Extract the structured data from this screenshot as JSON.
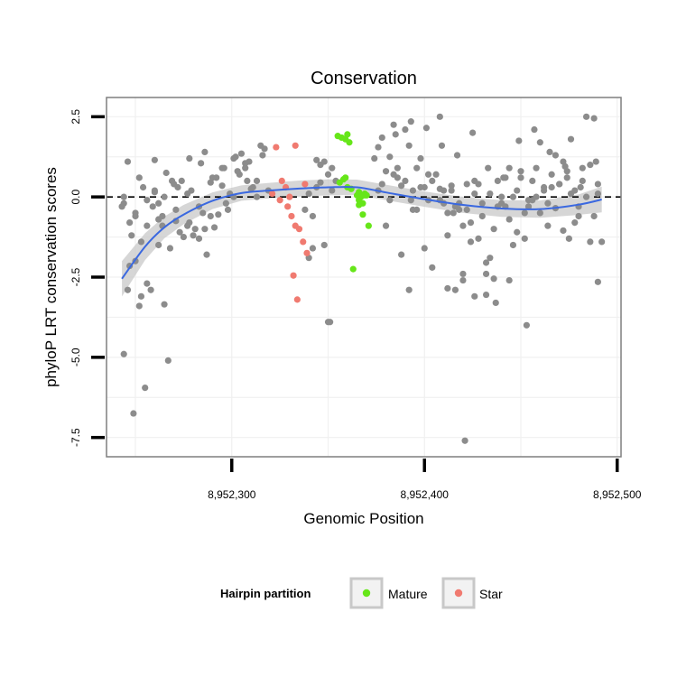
{
  "chart_data": {
    "type": "scatter",
    "title": "Conservation",
    "xlabel": "Genomic Position",
    "ylabel": "phyloP LRT conservation scores",
    "xlim": [
      8952235,
      8952502
    ],
    "ylim": [
      -8.1,
      3.1
    ],
    "x_ticks": [
      8952300,
      8952400,
      8952500
    ],
    "x_tick_labels": [
      "8,952,300",
      "8,952,400",
      "8,952,500"
    ],
    "y_ticks": [
      2.5,
      0,
      -2.5,
      -5,
      -7.5
    ],
    "y_tick_labels": [
      "2.5",
      "0.0",
      "-2.5",
      "-5.0",
      "-7.5"
    ],
    "grid": true,
    "reference_line": {
      "y": 0,
      "style": "dashed"
    },
    "legend": {
      "title": "Hairpin partition",
      "placement": "bottom",
      "entries": [
        {
          "label": "Mature",
          "color": "#66e619"
        },
        {
          "label": "Star",
          "color": "#f07a70"
        }
      ]
    },
    "colors": {
      "other": "#8c8c8c",
      "mature": "#66e619",
      "star": "#f07a70",
      "smooth": "#3a68e0",
      "ribbon": "#c8c8c8"
    },
    "smooth": {
      "x": [
        8952243,
        8952255,
        8952265,
        8952275,
        8952290,
        8952305,
        8952320,
        8952335,
        8952350,
        8952365,
        8952380,
        8952400,
        8952420,
        8952440,
        8952460,
        8952480,
        8952492
      ],
      "y": [
        -2.55,
        -1.55,
        -0.95,
        -0.55,
        -0.12,
        0.12,
        0.2,
        0.26,
        0.3,
        0.3,
        0.14,
        -0.07,
        -0.25,
        -0.36,
        -0.38,
        -0.24,
        -0.08
      ],
      "ci_half_width": [
        0.55,
        0.42,
        0.34,
        0.3,
        0.26,
        0.24,
        0.24,
        0.25,
        0.25,
        0.24,
        0.24,
        0.24,
        0.25,
        0.26,
        0.27,
        0.32,
        0.4
      ]
    },
    "series": [
      {
        "name": "Mature",
        "x": [
          8952355,
          8952357,
          8952359,
          8952360,
          8952361,
          8952363,
          8952356,
          8952358,
          8952359,
          8952360,
          8952365,
          8952366,
          8952367,
          8952368,
          8952369,
          8952370,
          8952368,
          8952371,
          8952366,
          8952362,
          8952369,
          8952366
        ],
        "y": [
          1.9,
          1.85,
          1.8,
          1.95,
          1.7,
          -2.25,
          0.45,
          0.55,
          0.6,
          0.3,
          0.05,
          -0.1,
          0.0,
          -0.2,
          0.1,
          0.05,
          -0.55,
          -0.9,
          0.15,
          0.25,
          0.05,
          -0.25
        ]
      },
      {
        "name": "Star",
        "x": [
          8952323,
          8952333,
          8952326,
          8952321,
          8952328,
          8952330,
          8952325,
          8952329,
          8952331,
          8952333,
          8952335,
          8952337,
          8952339,
          8952332,
          8952334,
          8952338
        ],
        "y": [
          1.55,
          1.6,
          0.5,
          0.1,
          0.3,
          0.0,
          -0.1,
          -0.3,
          -0.6,
          -0.9,
          -1.0,
          -1.4,
          -1.75,
          -2.45,
          -3.2,
          0.4
        ]
      },
      {
        "name": "Other",
        "x": [
          8952243,
          8952244,
          8952246,
          8952247,
          8952249,
          8952250,
          8952252,
          8952253,
          8952255,
          8952256,
          8952258,
          8952260,
          8952262,
          8952264,
          8952265,
          8952267,
          8952269,
          8952271,
          8952273,
          8952275,
          8952277,
          8952279,
          8952281,
          8952283,
          8952285,
          8952287,
          8952289,
          8952291,
          8952293,
          8952295,
          8952297,
          8952299,
          8952301,
          8952303,
          8952305,
          8952307,
          8952309,
          8952311,
          8952313,
          8952315,
          8952317,
          8952319,
          8952244,
          8952247,
          8952250,
          8952253,
          8952256,
          8952259,
          8952262,
          8952265,
          8952268,
          8952271,
          8952274,
          8952277,
          8952280,
          8952283,
          8952286,
          8952289,
          8952292,
          8952295,
          8952298,
          8952301,
          8952304,
          8952307,
          8952310,
          8952313,
          8952316,
          8952244,
          8952248,
          8952252,
          8952256,
          8952260,
          8952264,
          8952246,
          8952250,
          8952254,
          8952262,
          8952270,
          8952278,
          8952286,
          8952260,
          8952266,
          8952272,
          8952278,
          8952284,
          8952290,
          8952296,
          8952302,
          8952308,
          8952340,
          8952342,
          8952344,
          8952346,
          8952348,
          8952350,
          8952352,
          8952354,
          8952340,
          8952344,
          8952348,
          8952352,
          8952350,
          8952338,
          8952342,
          8952346,
          8952374,
          8952376,
          8952378,
          8952380,
          8952382,
          8952384,
          8952386,
          8952388,
          8952390,
          8952392,
          8952394,
          8952396,
          8952398,
          8952400,
          8952402,
          8952404,
          8952406,
          8952408,
          8952410,
          8952412,
          8952414,
          8952416,
          8952418,
          8952420,
          8952422,
          8952424,
          8952426,
          8952428,
          8952430,
          8952432,
          8952434,
          8952436,
          8952438,
          8952440,
          8952442,
          8952444,
          8952446,
          8952448,
          8952450,
          8952452,
          8952454,
          8952456,
          8952458,
          8952460,
          8952462,
          8952464,
          8952466,
          8952468,
          8952470,
          8952472,
          8952474,
          8952476,
          8952478,
          8952480,
          8952482,
          8952484,
          8952486,
          8952488,
          8952490,
          8952492,
          8952376,
          8952380,
          8952384,
          8952388,
          8952392,
          8952396,
          8952400,
          8952404,
          8952408,
          8952412,
          8952416,
          8952420,
          8952424,
          8952428,
          8952432,
          8952436,
          8952440,
          8952444,
          8952448,
          8952452,
          8952456,
          8952460,
          8952464,
          8952468,
          8952472,
          8952476,
          8952480,
          8952484,
          8952488,
          8952385,
          8952393,
          8952401,
          8952409,
          8952417,
          8952425,
          8952433,
          8952441,
          8952449,
          8952457,
          8952465,
          8952473,
          8952481,
          8952489,
          8952378,
          8952386,
          8952394,
          8952402,
          8952410,
          8952418,
          8952426,
          8952434,
          8952442,
          8952450,
          8952458,
          8952466,
          8952474,
          8952482,
          8952490,
          8952382,
          8952390,
          8952398,
          8952414,
          8952422,
          8952430,
          8952438,
          8952446,
          8952454,
          8952462,
          8952470,
          8952478,
          8952486,
          8952393,
          8952408,
          8952412,
          8952415,
          8952421,
          8952420,
          8952426,
          8952432,
          8952437,
          8952444,
          8952453,
          8952475,
          8952490,
          8952351
        ],
        "y": [
          -0.3,
          -4.9,
          -2.9,
          -2.15,
          -6.75,
          -0.6,
          -3.4,
          -3.1,
          -5.95,
          -2.7,
          -2.9,
          0.15,
          -1.5,
          -0.9,
          -3.35,
          -5.1,
          0.5,
          -0.75,
          -1.1,
          -1.25,
          -0.9,
          0.2,
          -1.0,
          -1.3,
          -0.5,
          -1.8,
          0.45,
          -0.95,
          -0.55,
          0.35,
          -0.2,
          0.1,
          1.2,
          0.8,
          1.35,
          0.9,
          1.1,
          0.3,
          0.0,
          1.6,
          1.5,
          0.2,
          -0.2,
          -0.8,
          -2.0,
          -1.4,
          -0.1,
          -0.3,
          -0.7,
          0.0,
          -1.6,
          -0.4,
          0.5,
          0.1,
          -1.2,
          -0.3,
          -1.0,
          -0.6,
          0.6,
          0.9,
          -0.4,
          0.0,
          0.7,
          1.05,
          0.25,
          0.5,
          1.3,
          0.0,
          -1.2,
          0.6,
          -0.9,
          0.2,
          -0.6,
          1.1,
          -0.5,
          0.3,
          -0.2,
          0.4,
          -0.8,
          1.4,
          1.15,
          0.75,
          0.3,
          1.2,
          1.05,
          0.6,
          0.9,
          1.25,
          0.5,
          -1.9,
          -1.6,
          0.3,
          1.0,
          1.1,
          0.7,
          0.9,
          0.5,
          0.1,
          1.15,
          -1.5,
          0.2,
          -3.9,
          -0.4,
          -0.6,
          0.45,
          1.2,
          1.55,
          1.85,
          0.8,
          1.25,
          2.25,
          0.6,
          0.35,
          2.1,
          1.6,
          -0.4,
          0.9,
          1.2,
          0.3,
          -0.1,
          0.5,
          0.7,
          0.25,
          0.2,
          -0.5,
          0.35,
          -2.9,
          -0.2,
          -0.9,
          -0.4,
          -1.4,
          0.1,
          0.4,
          -0.6,
          -2.4,
          -1.9,
          -1.0,
          -0.3,
          0.0,
          0.6,
          -0.7,
          -1.5,
          0.2,
          0.8,
          -0.5,
          -0.1,
          0.5,
          0.9,
          1.7,
          0.3,
          -0.2,
          0.7,
          1.3,
          0.4,
          1.1,
          0.6,
          1.8,
          0.2,
          -0.3,
          0.5,
          0.0,
          1.0,
          -0.6,
          0.4,
          -1.4,
          0.2,
          -0.9,
          0.7,
          -1.8,
          -2.9,
          -0.4,
          -1.6,
          -2.2,
          -0.1,
          -1.2,
          -0.3,
          -2.6,
          -0.8,
          -1.3,
          -3.05,
          -2.55,
          -0.2,
          0.9,
          -1.1,
          -1.3,
          -0.1,
          -0.5,
          -0.9,
          -0.35,
          -1.05,
          0.1,
          -0.6,
          2.5,
          2.45,
          1.95,
          2.35,
          2.15,
          1.6,
          1.3,
          2.0,
          0.9,
          0.6,
          1.75,
          2.1,
          1.4,
          0.95,
          0.3,
          1.1,
          0.4,
          0.9,
          0.2,
          0.7,
          -0.2,
          -0.4,
          0.5,
          0.1,
          -0.3,
          0.6,
          0.0,
          0.3,
          0.8,
          0.9,
          0.1,
          -0.1,
          0.5,
          0.3,
          0.2,
          0.4,
          -0.2,
          0.5,
          0.0,
          -0.3,
          0.2,
          0.4,
          -0.8,
          -1.4,
          -0.1,
          2.5,
          -2.85,
          -0.5,
          -7.6,
          -2.4,
          -3.1,
          -2.05,
          -3.3,
          -2.6,
          -4.0,
          -1.3,
          -2.65,
          -3.9
        ]
      }
    ]
  }
}
